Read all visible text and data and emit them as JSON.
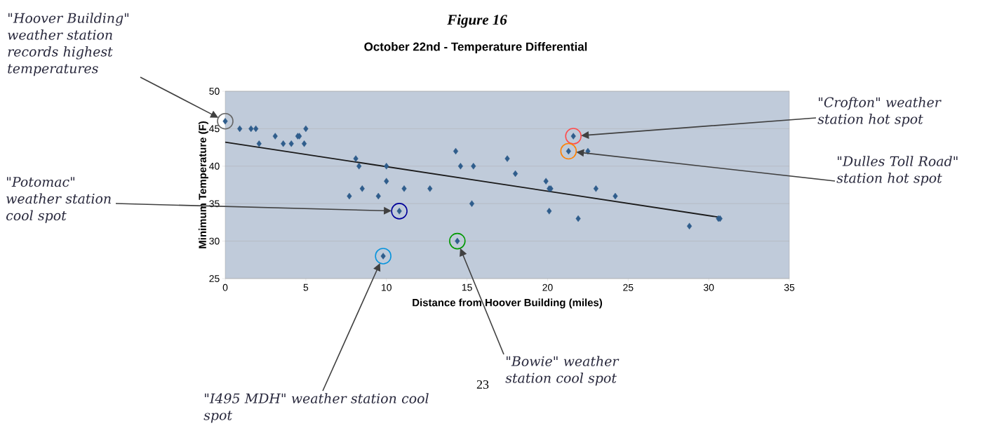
{
  "chart_data": {
    "type": "scatter",
    "title": "Figure 16",
    "subtitle": "October 22nd - Temperature Differential",
    "xlabel": "Distance from Hoover Building (miles)",
    "ylabel": "Minimum Temperature (F)",
    "xlim": [
      0,
      35
    ],
    "ylim": [
      25,
      50
    ],
    "xticks": [
      0,
      5,
      10,
      15,
      20,
      25,
      30,
      35
    ],
    "yticks": [
      25,
      30,
      35,
      40,
      45,
      50
    ],
    "grid": "y",
    "series": [
      {
        "type": "scatter",
        "color": "#2f5d8c",
        "marker": "diamond",
        "x": [
          0,
          0.9,
          1.6,
          1.9,
          2.1,
          3.1,
          3.6,
          4.1,
          4.5,
          4.6,
          4.9,
          5.0,
          7.7,
          8.1,
          8.3,
          8.5,
          9.5,
          9.8,
          10.0,
          10.0,
          10.8,
          11.1,
          12.7,
          14.3,
          14.4,
          14.6,
          15.3,
          15.4,
          17.5,
          18.0,
          19.9,
          20.1,
          20.2,
          20.1,
          21.3,
          21.6,
          21.9,
          22.5,
          23.0,
          24.2,
          28.8,
          30.6,
          30.7
        ],
        "values": [
          46,
          45,
          45,
          45,
          43,
          44,
          43,
          43,
          44,
          44,
          43,
          45,
          36,
          41,
          40,
          37,
          36,
          28,
          40,
          38,
          34,
          37,
          37,
          42,
          30,
          40,
          35,
          40,
          41,
          39,
          38,
          37,
          37,
          34,
          42,
          44,
          33,
          42,
          37,
          36,
          32,
          33,
          33
        ]
      },
      {
        "type": "line",
        "color": "#1a1a1a",
        "marker": "none",
        "x": [
          0,
          30.6
        ],
        "values": [
          43.2,
          33.2
        ]
      }
    ],
    "annotations": [
      "\"Hoover Building\" weather station records highest temperatures",
      "\"Crofton\" weather station hot spot",
      "\"Dulles Toll Road\" station hot spot",
      "\"Potomac\" weather station cool spot",
      "\"I495 MDH\" weather station cool spot",
      "\"Bowie\" weather station cool spot",
      "23"
    ]
  }
}
